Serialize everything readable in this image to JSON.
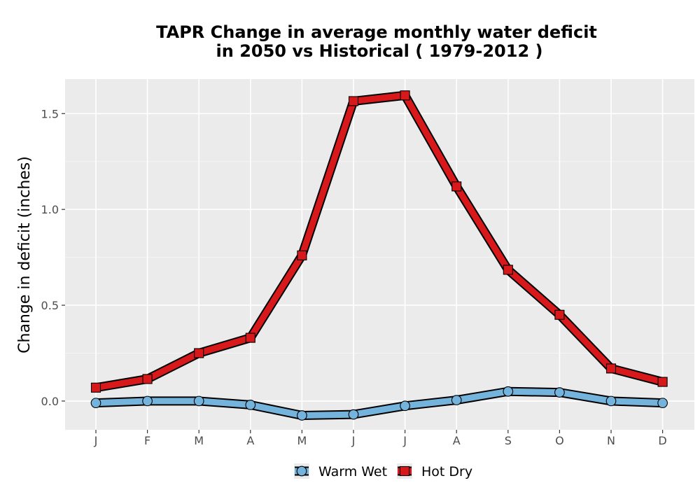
{
  "chart_data": {
    "type": "line",
    "title_line1": "TAPR  Change in average monthly water deficit",
    "title_line2": "in 2050 vs Historical ( 1979-2012 )",
    "xlabel": "",
    "ylabel": "Change in deficit (inches)",
    "categories": [
      "J",
      "F",
      "M",
      "A",
      "M",
      "J",
      "J",
      "A",
      "S",
      "O",
      "N",
      "D"
    ],
    "yticks": [
      "0.0",
      "0.5",
      "1.0",
      "1.5"
    ],
    "ylim": [
      -0.15,
      1.68
    ],
    "grid": true,
    "legend_position": "bottom",
    "series": [
      {
        "name": "Warm Wet",
        "color": "#74b3dc",
        "marker": "circle",
        "values": [
          -0.01,
          0.0,
          0.0,
          -0.02,
          -0.075,
          -0.07,
          -0.025,
          0.005,
          0.05,
          0.045,
          0.0,
          -0.01
        ]
      },
      {
        "name": "Hot Dry",
        "color": "#d7191c",
        "marker": "square",
        "values": [
          0.07,
          0.115,
          0.25,
          0.33,
          0.76,
          1.565,
          1.595,
          1.12,
          0.685,
          0.45,
          0.17,
          0.1
        ]
      }
    ]
  }
}
